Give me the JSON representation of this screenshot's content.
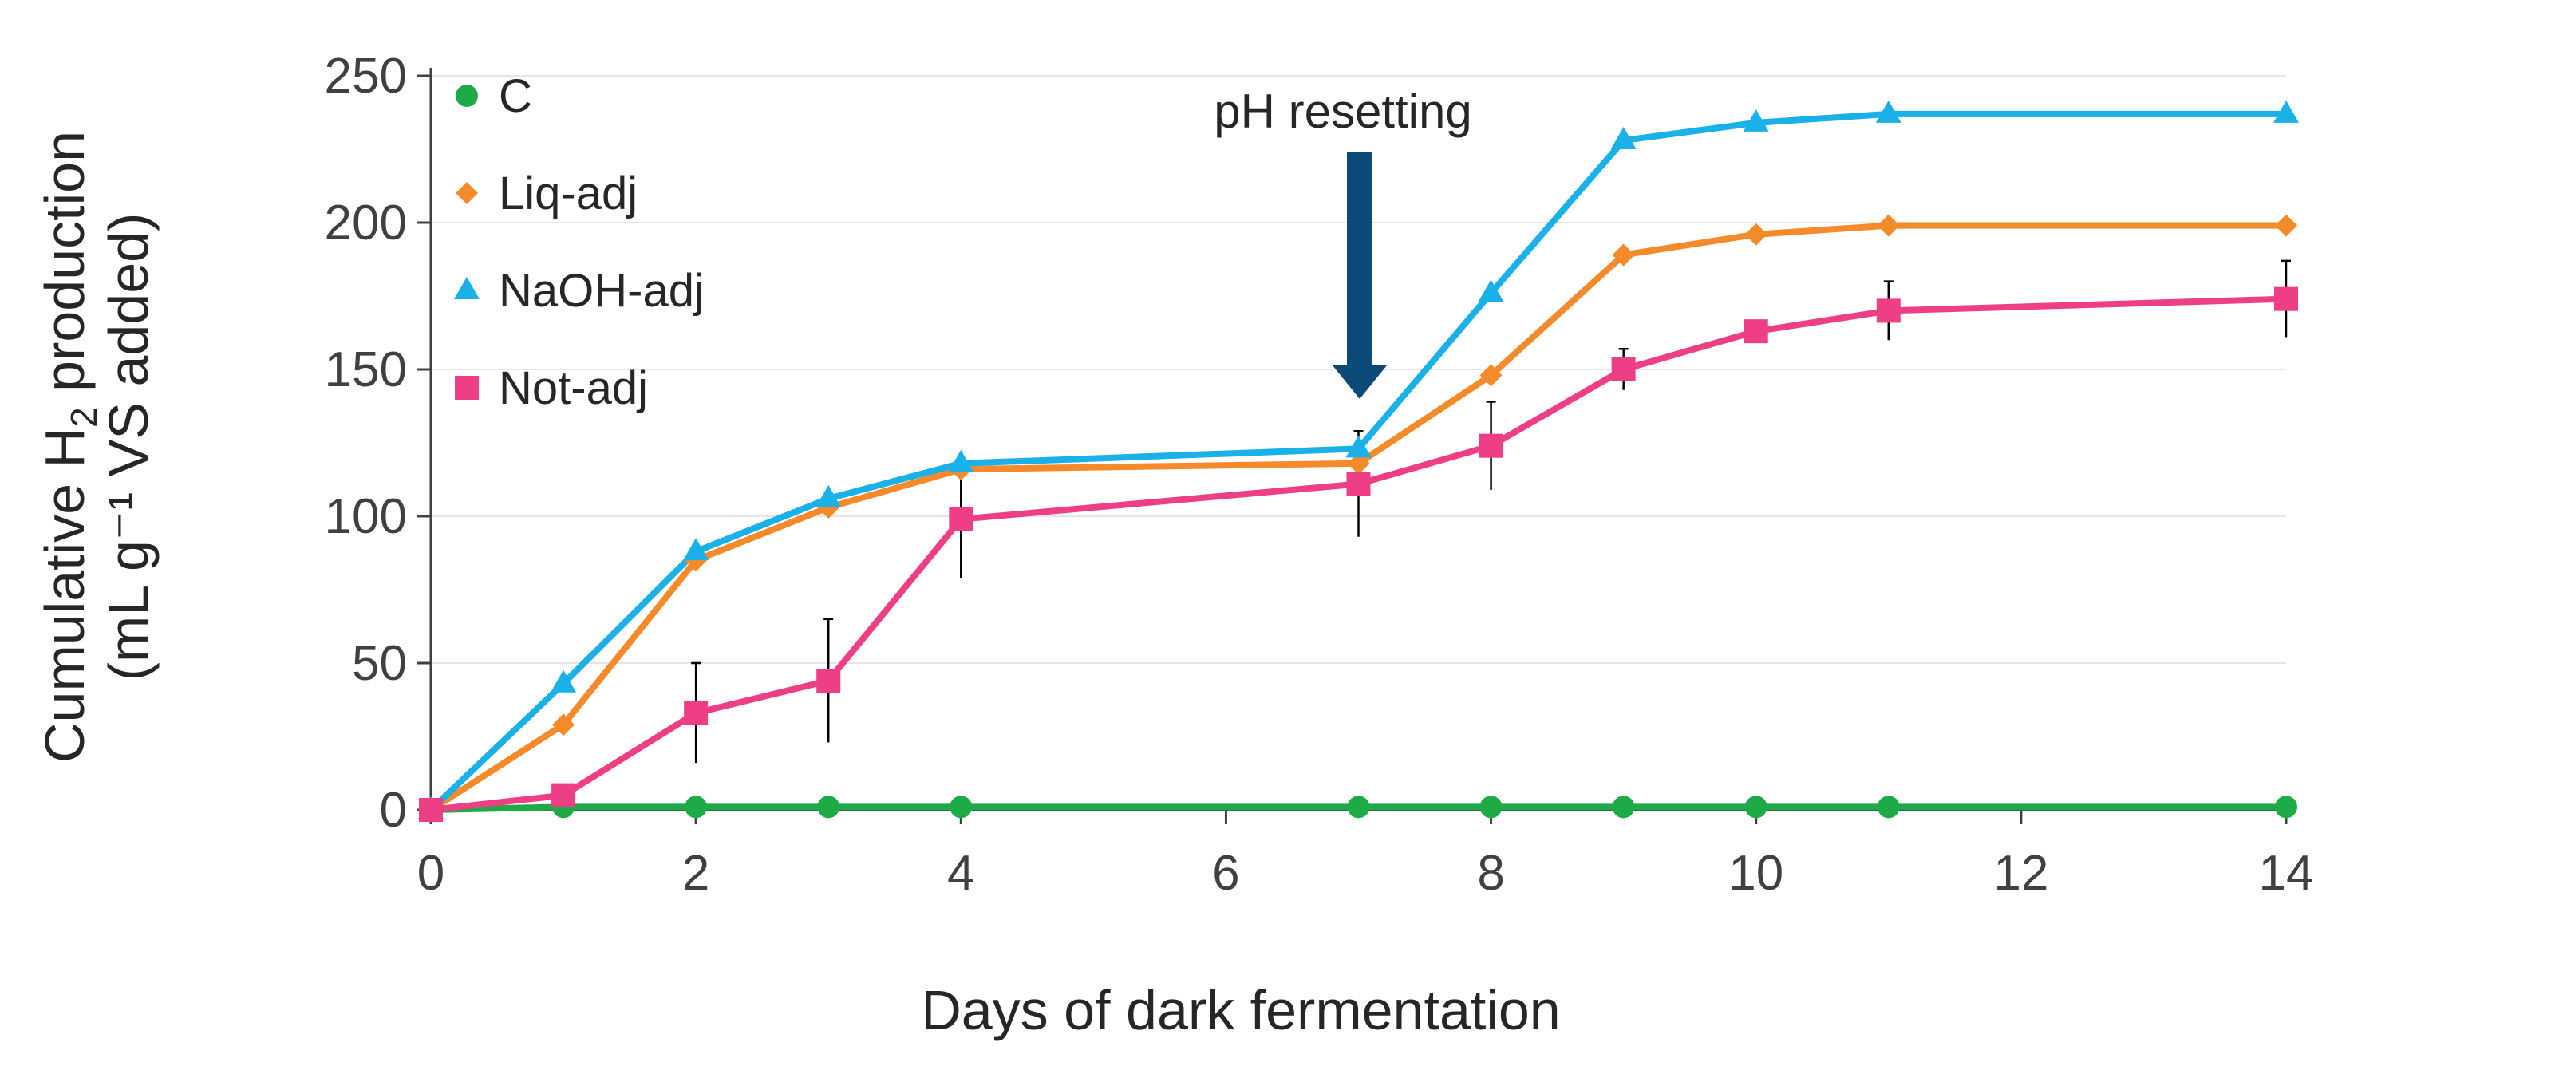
{
  "chart_data": {
    "type": "line",
    "title": "",
    "xlabel": "Days of dark fermentation",
    "ylabel_line1": "Cumulative H",
    "ylabel_sub": "2",
    "ylabel_line1_rest": " production",
    "ylabel_line2": "(mL g⁻¹ VS added)",
    "xlim": [
      0,
      14
    ],
    "ylim": [
      0,
      250
    ],
    "xticks": [
      "0",
      "2",
      "4",
      "6",
      "8",
      "10",
      "12",
      "14"
    ],
    "yticks": [
      "0",
      "50",
      "100",
      "150",
      "200",
      "250"
    ],
    "grid": "horizontal",
    "legend_position": "top-left",
    "annotation": {
      "text": "pH resetting",
      "x": 7
    },
    "series": [
      {
        "name": "C",
        "color": "#1faa48",
        "marker": "circle",
        "x": [
          0,
          1,
          2,
          3,
          4,
          7,
          8,
          9,
          10,
          11,
          14
        ],
        "values": [
          0,
          1,
          1,
          1,
          1,
          1,
          1,
          1,
          1,
          1,
          1
        ],
        "errors": [
          0,
          0,
          0,
          0,
          0,
          0,
          0,
          0,
          0,
          0,
          0
        ]
      },
      {
        "name": "Liq-adj",
        "color": "#f58a2a",
        "marker": "diamond",
        "x": [
          0,
          1,
          2,
          3,
          4,
          7,
          8,
          9,
          10,
          11,
          14
        ],
        "values": [
          0,
          29,
          85,
          103,
          116,
          118,
          148,
          189,
          196,
          199,
          199
        ],
        "errors": [
          0,
          0,
          0,
          0,
          0,
          0,
          0,
          0,
          0,
          0,
          0
        ]
      },
      {
        "name": "NaOH-adj",
        "color": "#1ab0e8",
        "marker": "triangle",
        "x": [
          0,
          1,
          2,
          3,
          4,
          7,
          8,
          9,
          10,
          11,
          14
        ],
        "values": [
          0,
          43,
          88,
          106,
          118,
          123,
          176,
          228,
          234,
          237,
          237
        ],
        "errors": [
          0,
          0,
          0,
          0,
          0,
          0,
          0,
          0,
          0,
          0,
          0
        ]
      },
      {
        "name": "Not-adj",
        "color": "#ee3f86",
        "marker": "square",
        "x": [
          0,
          1,
          2,
          3,
          4,
          7,
          8,
          9,
          10,
          11,
          14
        ],
        "values": [
          0,
          5,
          33,
          44,
          99,
          111,
          124,
          150,
          163,
          170,
          174
        ],
        "errors": [
          0,
          0,
          17,
          21,
          20,
          18,
          15,
          7,
          0,
          10,
          13
        ]
      }
    ]
  }
}
